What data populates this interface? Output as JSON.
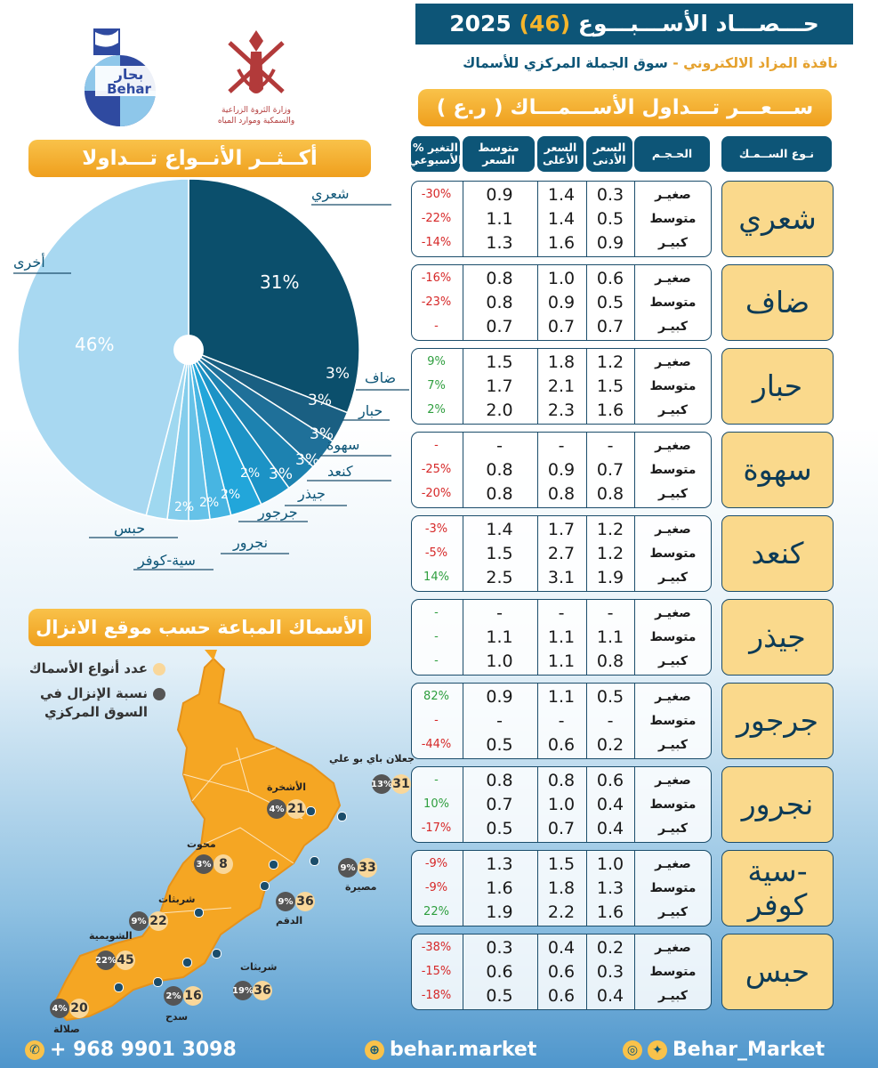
{
  "header": {
    "title_prefix": "حـــصـــاد الأســـبـــوع",
    "week_number": "46",
    "year": "2025",
    "subtitle_market": "سوق الجملة المركزي للأسماك",
    "subtitle_sep": "-",
    "subtitle_window": "نافذة المزاد الالكتروني"
  },
  "logos": {
    "behar_ar": "بحار",
    "behar_en": "Behar",
    "ministry_line1": "وزارة الثروة الزراعية",
    "ministry_line2": "والسمكية وموارد المياه"
  },
  "price_table": {
    "banner": "ســـعـــر تـــداول الأســـمـــاك ( ر.ع )",
    "headers": {
      "fish": "نـوع الســمـك",
      "size": "الحـجـم",
      "min": "السعر\nالأدنى",
      "max": "السعر\nالأعلى",
      "avg": "متوسط\nالسعر",
      "chg": "% التغير\nالأسبوعي"
    },
    "fish": [
      {
        "name": "شعري",
        "rows": [
          {
            "size": "صغيـر",
            "min": "0.3",
            "max": "1.4",
            "avg": "0.9",
            "chg": "-30%"
          },
          {
            "size": "متوسط",
            "min": "0.5",
            "max": "1.4",
            "avg": "1.1",
            "chg": "-22%"
          },
          {
            "size": "كبيـر",
            "min": "0.9",
            "max": "1.6",
            "avg": "1.3",
            "chg": "-14%"
          }
        ]
      },
      {
        "name": "ضاف",
        "rows": [
          {
            "size": "صغيـر",
            "min": "0.6",
            "max": "1.0",
            "avg": "0.8",
            "chg": "-16%"
          },
          {
            "size": "متوسط",
            "min": "0.5",
            "max": "0.9",
            "avg": "0.8",
            "chg": "-23%"
          },
          {
            "size": "كبيـر",
            "min": "0.7",
            "max": "0.7",
            "avg": "0.7",
            "chg": "-"
          }
        ]
      },
      {
        "name": "حبار",
        "rows": [
          {
            "size": "صغيـر",
            "min": "1.2",
            "max": "1.8",
            "avg": "1.5",
            "chg": "9%"
          },
          {
            "size": "متوسط",
            "min": "1.5",
            "max": "2.1",
            "avg": "1.7",
            "chg": "7%"
          },
          {
            "size": "كبيـر",
            "min": "1.6",
            "max": "2.3",
            "avg": "2.0",
            "chg": "2%"
          }
        ]
      },
      {
        "name": "سهوة",
        "rows": [
          {
            "size": "صغيـر",
            "min": "-",
            "max": "-",
            "avg": "-",
            "chg": "-"
          },
          {
            "size": "متوسط",
            "min": "0.7",
            "max": "0.9",
            "avg": "0.8",
            "chg": "-25%"
          },
          {
            "size": "كبيـر",
            "min": "0.8",
            "max": "0.8",
            "avg": "0.8",
            "chg": "-20%"
          }
        ]
      },
      {
        "name": "كنعد",
        "rows": [
          {
            "size": "صغيـر",
            "min": "1.2",
            "max": "1.7",
            "avg": "1.4",
            "chg": "-3%"
          },
          {
            "size": "متوسط",
            "min": "1.2",
            "max": "2.7",
            "avg": "1.5",
            "chg": "-5%"
          },
          {
            "size": "كبيـر",
            "min": "1.9",
            "max": "3.1",
            "avg": "2.5",
            "chg": "14%"
          }
        ]
      },
      {
        "name": "جيذر",
        "rows": [
          {
            "size": "صغيـر",
            "min": "-",
            "max": "-",
            "avg": "-",
            "chg": "-"
          },
          {
            "size": "متوسط",
            "min": "1.1",
            "max": "1.1",
            "avg": "1.1",
            "chg": "-"
          },
          {
            "size": "كبيـر",
            "min": "0.8",
            "max": "1.1",
            "avg": "1.0",
            "chg": "-"
          }
        ]
      },
      {
        "name": "جرجور",
        "rows": [
          {
            "size": "صغيـر",
            "min": "0.5",
            "max": "1.1",
            "avg": "0.9",
            "chg": "82%"
          },
          {
            "size": "متوسط",
            "min": "-",
            "max": "-",
            "avg": "-",
            "chg": "-"
          },
          {
            "size": "كبيـر",
            "min": "0.2",
            "max": "0.6",
            "avg": "0.5",
            "chg": "-44%"
          }
        ]
      },
      {
        "name": "نجرور",
        "rows": [
          {
            "size": "صغيـر",
            "min": "0.6",
            "max": "0.8",
            "avg": "0.8",
            "chg": "-"
          },
          {
            "size": "متوسط",
            "min": "0.4",
            "max": "1.0",
            "avg": "0.7",
            "chg": "10%"
          },
          {
            "size": "كبيـر",
            "min": "0.4",
            "max": "0.7",
            "avg": "0.5",
            "chg": "-17%"
          }
        ]
      },
      {
        "name": "سية-\nكوفر",
        "rows": [
          {
            "size": "صغيـر",
            "min": "1.0",
            "max": "1.5",
            "avg": "1.3",
            "chg": "-9%"
          },
          {
            "size": "متوسط",
            "min": "1.3",
            "max": "1.8",
            "avg": "1.6",
            "chg": "-9%"
          },
          {
            "size": "كبيـر",
            "min": "1.6",
            "max": "2.2",
            "avg": "1.9",
            "chg": "22%"
          }
        ]
      },
      {
        "name": "حبس",
        "rows": [
          {
            "size": "صغيـر",
            "min": "0.2",
            "max": "0.4",
            "avg": "0.3",
            "chg": "-38%"
          },
          {
            "size": "متوسط",
            "min": "0.3",
            "max": "0.6",
            "avg": "0.6",
            "chg": "-15%"
          },
          {
            "size": "كبيـر",
            "min": "0.4",
            "max": "0.6",
            "avg": "0.5",
            "chg": "-18%"
          }
        ]
      }
    ]
  },
  "chart_data": {
    "type": "pie",
    "title": "أكــثــر الأنــواع تـــداولا",
    "categories": [
      "شعري",
      "ضاف",
      "حبار",
      "سهوة",
      "كنعد",
      "جيذر",
      "جرجور",
      "نجرور",
      "سية-كوفر",
      "حبس",
      "أخرى"
    ],
    "values": [
      31,
      3,
      3,
      3,
      3,
      3,
      2,
      2,
      2,
      2,
      46
    ],
    "colors": [
      "#0b4f6c",
      "#1a5f82",
      "#1f7099",
      "#1d82b0",
      "#1c93c6",
      "#22a6da",
      "#47b5e2",
      "#66c2e8",
      "#84cdec",
      "#9fd8f0",
      "#a8d8f1"
    ]
  },
  "landing_map": {
    "banner": "الأسماك المباعة حسب موقع الانزال",
    "legend_count": "عدد أنواع الأسماك",
    "legend_pct_line1": "نسبة الإنزال في",
    "legend_pct_line2": "السوق المركزي",
    "sites": [
      {
        "name": "جعلان باي بو علي",
        "count": "31",
        "pct": "13%"
      },
      {
        "name": "الأشخرة",
        "count": "21",
        "pct": "4%"
      },
      {
        "name": "محوت",
        "count": "8",
        "pct": "3%"
      },
      {
        "name": "مصيرة",
        "count": "33",
        "pct": "9%"
      },
      {
        "name": "الدقم",
        "count": "36",
        "pct": "9%"
      },
      {
        "name": "شربثات",
        "count": "22",
        "pct": "9%"
      },
      {
        "name": "الشويمية",
        "count": "45",
        "pct": "22%"
      },
      {
        "name": "شربثات",
        "count": "36",
        "pct": "19%"
      },
      {
        "name": "سدح",
        "count": "16",
        "pct": "2%"
      },
      {
        "name": "صلالة",
        "count": "20",
        "pct": "4%"
      }
    ]
  },
  "footer": {
    "phone": "+ 968 9901 3098",
    "website": "behar.market",
    "social": "Behar_Market"
  }
}
